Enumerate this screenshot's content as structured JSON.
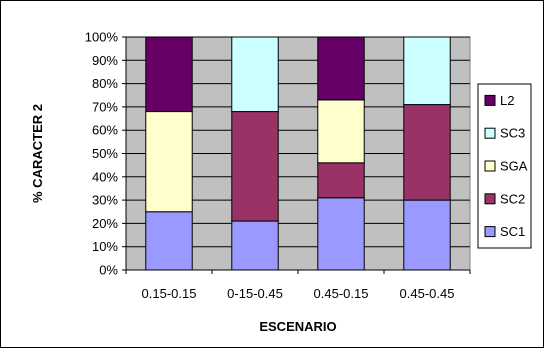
{
  "chart_data": {
    "type": "bar",
    "stacked": "percent",
    "title": "",
    "xlabel": "ESCENARIO",
    "ylabel": "% CARACTER 2",
    "ylim": [
      0,
      100
    ],
    "yticks": [
      "0%",
      "10%",
      "20%",
      "30%",
      "40%",
      "50%",
      "60%",
      "70%",
      "80%",
      "90%",
      "100%"
    ],
    "categories": [
      "0.15-0.15",
      "0-15-0.45",
      "0.45-0.15",
      "0.45-0.45"
    ],
    "grid": true,
    "legend_position": "right",
    "series": [
      {
        "name": "SC1",
        "color": "#9999FF",
        "values": [
          25,
          21,
          31,
          30
        ]
      },
      {
        "name": "SC2",
        "color": "#993366",
        "values": [
          0,
          47,
          15,
          41
        ]
      },
      {
        "name": "SGA",
        "color": "#FFFFCC",
        "values": [
          43,
          0,
          27,
          0
        ]
      },
      {
        "name": "SC3",
        "color": "#CCFFFF",
        "values": [
          0,
          32,
          0,
          29
        ]
      },
      {
        "name": "L2",
        "color": "#660066",
        "values": [
          32,
          0,
          27,
          0
        ]
      }
    ],
    "plot_background": "#C0C0C0"
  }
}
